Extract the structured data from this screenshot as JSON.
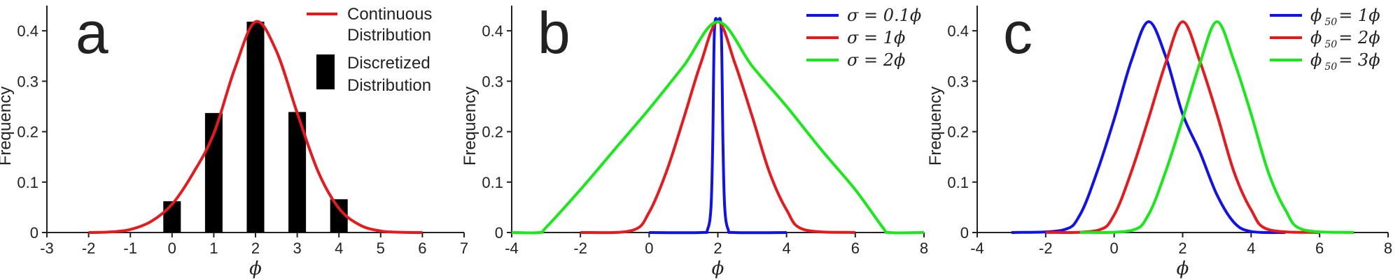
{
  "chart_data": [
    {
      "type": "bar",
      "panel": "a",
      "xlabel": "ϕ",
      "ylabel": "Frequency",
      "xlim": [
        -3,
        7
      ],
      "ylim": [
        0,
        0.45
      ],
      "xticks": [
        "-3",
        "-2",
        "-1",
        "0",
        "1",
        "2",
        "3",
        "4",
        "5",
        "6",
        "7"
      ],
      "yticks": [
        "0",
        "0.1",
        "0.2",
        "0.3",
        "0.4"
      ],
      "legend": [
        {
          "label_line1": "Continuous",
          "label_line2": "Distribution",
          "color": "#e8191d",
          "kind": "line"
        },
        {
          "label_line1": "Discretized",
          "label_line2": "Distribution",
          "color": "#000000",
          "kind": "bar"
        }
      ],
      "bars": {
        "x": [
          0,
          1,
          2,
          3,
          4
        ],
        "values": [
          0.062,
          0.237,
          0.418,
          0.239,
          0.066
        ]
      },
      "series": [
        {
          "name": "Continuous Distribution",
          "color": "#e8191d",
          "x": [
            -2,
            -1.5,
            -1,
            -0.5,
            0,
            0.5,
            1,
            1.5,
            2,
            2.5,
            3,
            3.5,
            4,
            4.5,
            5,
            5.5,
            6
          ],
          "y": [
            0.0,
            0.001,
            0.006,
            0.022,
            0.056,
            0.117,
            0.196,
            0.324,
            0.418,
            0.36,
            0.237,
            0.121,
            0.048,
            0.015,
            0.003,
            0.0005,
            0.0
          ]
        }
      ]
    },
    {
      "type": "line",
      "panel": "b",
      "xlabel": "ϕ",
      "ylabel": "Frequency",
      "xlim": [
        -4,
        8
      ],
      "ylim": [
        0,
        0.45
      ],
      "xticks": [
        "-4",
        "-2",
        "0",
        "2",
        "4",
        "6",
        "8"
      ],
      "yticks": [
        "0",
        "0.1",
        "0.2",
        "0.3",
        "0.4"
      ],
      "legend": [
        {
          "label": "σ = 0.1ϕ",
          "color": "#1010f0"
        },
        {
          "label": "σ = 1ϕ",
          "color": "#e8191d"
        },
        {
          "label": "σ = 2ϕ",
          "color": "#19e819"
        }
      ],
      "series": [
        {
          "name": "σ = 0.1ϕ",
          "color": "#1010f0",
          "x": [
            0,
            1.5,
            1.7,
            1.8,
            1.85,
            1.9,
            2.0,
            2.1,
            2.15,
            2.2,
            2.3,
            2.5,
            4
          ],
          "y": [
            0.0,
            0.0,
            0.006,
            0.05,
            0.17,
            0.4,
            0.418,
            0.4,
            0.17,
            0.05,
            0.006,
            0.0,
            0.0
          ]
        },
        {
          "name": "σ = 1ϕ",
          "color": "#e8191d",
          "x": [
            -2,
            -0.5,
            0,
            0.5,
            1,
            1.5,
            2,
            2.5,
            3,
            3.5,
            4,
            4.5,
            6
          ],
          "y": [
            0.0,
            0.004,
            0.04,
            0.12,
            0.225,
            0.335,
            0.418,
            0.335,
            0.23,
            0.12,
            0.045,
            0.006,
            0.0
          ]
        },
        {
          "name": "σ = 2ϕ",
          "color": "#19e819",
          "x": [
            -4,
            -3.2,
            -3,
            -2,
            -1,
            0,
            1,
            2,
            3,
            4,
            5,
            6,
            6.8,
            7,
            8
          ],
          "y": [
            0.0,
            0.0,
            0.01,
            0.085,
            0.165,
            0.245,
            0.33,
            0.418,
            0.33,
            0.25,
            0.165,
            0.085,
            0.01,
            0.0,
            0.0
          ]
        }
      ]
    },
    {
      "type": "line",
      "panel": "c",
      "xlabel": "ϕ",
      "ylabel": "Frequency",
      "xlim": [
        -4,
        8
      ],
      "ylim": [
        0,
        0.45
      ],
      "xticks": [
        "-4",
        "-2",
        "0",
        "2",
        "4",
        "6",
        "8"
      ],
      "yticks": [
        "0",
        "0.1",
        "0.2",
        "0.3",
        "0.4"
      ],
      "legend": [
        {
          "label_main": "ϕ",
          "label_sub": "50",
          "label_rest": "= 1ϕ",
          "color": "#1010f0"
        },
        {
          "label_main": "ϕ",
          "label_sub": "50",
          "label_rest": "= 2ϕ",
          "color": "#e8191d"
        },
        {
          "label_main": "ϕ",
          "label_sub": "50",
          "label_rest": "= 3ϕ",
          "color": "#19e819"
        }
      ],
      "series": [
        {
          "name": "ϕ50 = 1ϕ",
          "color": "#1010f0",
          "x": [
            -3,
            -1.5,
            -1,
            -0.5,
            0,
            0.5,
            1,
            1.5,
            2,
            2.5,
            3,
            3.5,
            4,
            5
          ],
          "y": [
            0.0,
            0.005,
            0.035,
            0.12,
            0.225,
            0.34,
            0.418,
            0.35,
            0.235,
            0.16,
            0.075,
            0.02,
            0.002,
            0.0
          ]
        },
        {
          "name": "ϕ50 = 2ϕ",
          "color": "#e8191d",
          "x": [
            -2,
            -0.5,
            0,
            0.5,
            1,
            1.5,
            2,
            2.5,
            3,
            3.5,
            4,
            4.5,
            6
          ],
          "y": [
            0.0,
            0.004,
            0.035,
            0.12,
            0.225,
            0.335,
            0.418,
            0.34,
            0.235,
            0.12,
            0.045,
            0.006,
            0.0
          ]
        },
        {
          "name": "ϕ50 = 3ϕ",
          "color": "#19e819",
          "x": [
            -1,
            0.5,
            1,
            1.5,
            2,
            2.5,
            3,
            3.5,
            4,
            4.5,
            5,
            5.5,
            7
          ],
          "y": [
            0.0,
            0.004,
            0.035,
            0.12,
            0.225,
            0.335,
            0.418,
            0.34,
            0.235,
            0.12,
            0.045,
            0.006,
            0.0
          ]
        }
      ]
    }
  ],
  "panels": [
    {
      "letter": "a"
    },
    {
      "letter": "b"
    },
    {
      "letter": "c"
    }
  ]
}
